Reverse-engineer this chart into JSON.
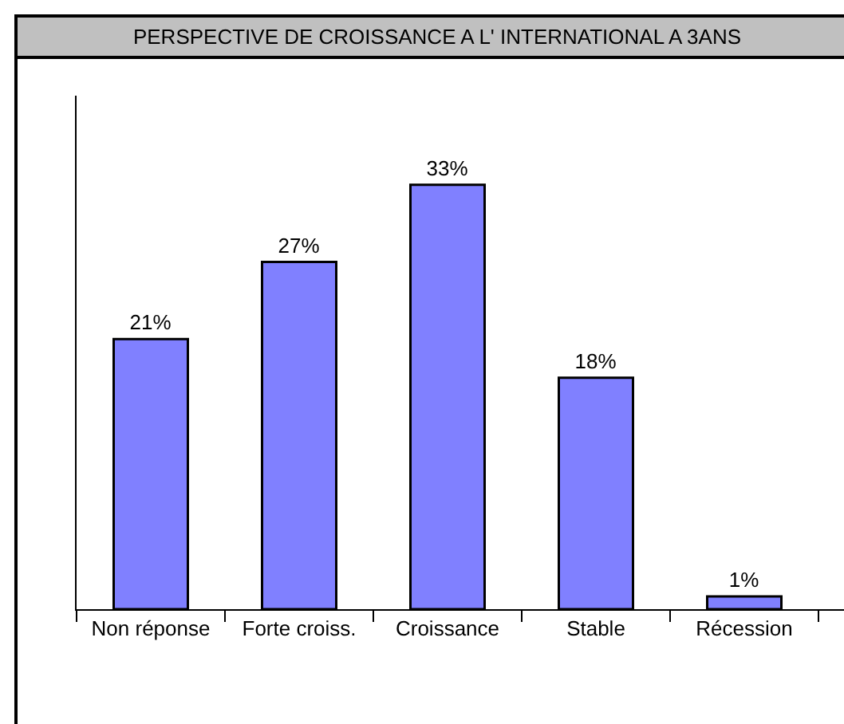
{
  "chart_data": {
    "type": "bar",
    "title": "PERSPECTIVE DE CROISSANCE A L' INTERNATIONAL A 3ANS",
    "categories": [
      "Non réponse",
      "Forte croiss.",
      "Croissance",
      "Stable",
      "Récession"
    ],
    "values": [
      21,
      27,
      33,
      18,
      1
    ],
    "value_labels": [
      "21%",
      "27%",
      "33%",
      "18%",
      "1%"
    ],
    "color": "#8080ff"
  }
}
